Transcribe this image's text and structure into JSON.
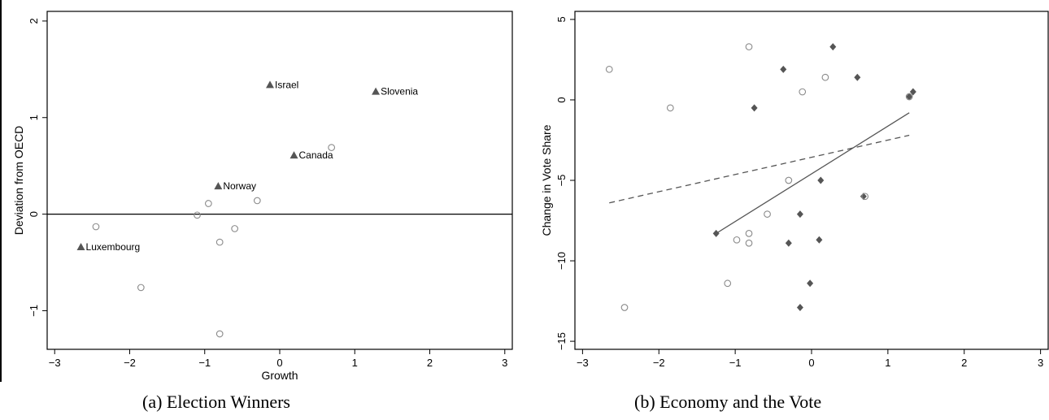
{
  "chart_data": [
    {
      "type": "scatter",
      "caption": "(a) Election Winners",
      "xlabel": "Growth",
      "ylabel": "Deviation from OECD",
      "xlim": [
        -3.1,
        3.1
      ],
      "ylim": [
        -1.4,
        2.1
      ],
      "xticks": [
        -3,
        -2,
        -1,
        0,
        1,
        2,
        3
      ],
      "yticks": [
        -1,
        0,
        1,
        2
      ],
      "xtick_labels": [
        "−3",
        "−2",
        "−1",
        "0",
        "1",
        "2",
        "3"
      ],
      "ytick_labels": [
        "−1",
        "0",
        "1",
        "2"
      ],
      "hline": 0,
      "grid": false,
      "series": [
        {
          "marker": "triangle",
          "color": "#555555",
          "points": [
            {
              "x": -0.13,
              "y": 1.34,
              "label": "Israel"
            },
            {
              "x": 1.28,
              "y": 1.27,
              "label": "Slovenia"
            },
            {
              "x": 0.19,
              "y": 0.61,
              "label": "Canada"
            },
            {
              "x": -0.82,
              "y": 0.29,
              "label": "Norway"
            },
            {
              "x": -2.65,
              "y": -0.34,
              "label": "Luxembourg"
            }
          ]
        },
        {
          "marker": "circle",
          "color": "#8a8a8a",
          "points": [
            {
              "x": 0.69,
              "y": 0.69
            },
            {
              "x": -0.3,
              "y": 0.14
            },
            {
              "x": -0.95,
              "y": 0.11
            },
            {
              "x": -1.1,
              "y": -0.01
            },
            {
              "x": -0.6,
              "y": -0.15
            },
            {
              "x": -0.8,
              "y": -0.29
            },
            {
              "x": -2.45,
              "y": -0.13
            },
            {
              "x": -1.85,
              "y": -0.76
            },
            {
              "x": -0.8,
              "y": -1.24
            }
          ]
        }
      ]
    },
    {
      "type": "scatter",
      "caption": "(b) Economy and the Vote",
      "xlabel": "",
      "ylabel": "Change in Vote Share",
      "xlim": [
        -3.1,
        3.1
      ],
      "ylim": [
        -15.5,
        5.5
      ],
      "xticks": [
        -3,
        -2,
        -1,
        0,
        1,
        2,
        3
      ],
      "yticks": [
        -15,
        -10,
        -5,
        0,
        5
      ],
      "xtick_labels": [
        "−3",
        "−2",
        "−1",
        "0",
        "1",
        "2",
        "3"
      ],
      "ytick_labels": [
        "−15",
        "−10",
        "−5",
        "0",
        "5"
      ],
      "grid": false,
      "series": [
        {
          "marker": "diamond",
          "color": "#555555",
          "points": [
            {
              "x": 0.28,
              "y": 3.3
            },
            {
              "x": -0.37,
              "y": 1.9
            },
            {
              "x": 0.6,
              "y": 1.4
            },
            {
              "x": 1.33,
              "y": 0.5
            },
            {
              "x": 1.28,
              "y": 0.2
            },
            {
              "x": -0.75,
              "y": -0.5
            },
            {
              "x": 0.12,
              "y": -5.0
            },
            {
              "x": 0.68,
              "y": -6.0
            },
            {
              "x": -0.15,
              "y": -7.1
            },
            {
              "x": -1.25,
              "y": -8.3
            },
            {
              "x": 0.1,
              "y": -8.7
            },
            {
              "x": -0.3,
              "y": -8.9
            },
            {
              "x": -0.02,
              "y": -11.4
            },
            {
              "x": -0.15,
              "y": -12.9
            }
          ]
        },
        {
          "marker": "circle",
          "color": "#8a8a8a",
          "points": [
            {
              "x": -0.82,
              "y": 3.3
            },
            {
              "x": -2.65,
              "y": 1.9
            },
            {
              "x": 0.18,
              "y": 1.4
            },
            {
              "x": -0.12,
              "y": 0.5
            },
            {
              "x": 1.28,
              "y": 0.2
            },
            {
              "x": -1.85,
              "y": -0.5
            },
            {
              "x": -0.3,
              "y": -5.0
            },
            {
              "x": 0.7,
              "y": -6.0
            },
            {
              "x": -0.58,
              "y": -7.1
            },
            {
              "x": -0.82,
              "y": -8.3
            },
            {
              "x": -0.98,
              "y": -8.7
            },
            {
              "x": -0.82,
              "y": -8.9
            },
            {
              "x": -1.1,
              "y": -11.4
            },
            {
              "x": -2.45,
              "y": -12.9
            }
          ]
        }
      ],
      "lines": [
        {
          "style": "solid",
          "color": "#555555",
          "x": [
            -1.25,
            1.28
          ],
          "y": [
            -8.3,
            -0.8
          ]
        },
        {
          "style": "dashed",
          "color": "#555555",
          "x": [
            -2.65,
            1.28
          ],
          "y": [
            -6.4,
            -2.2
          ]
        }
      ]
    }
  ]
}
